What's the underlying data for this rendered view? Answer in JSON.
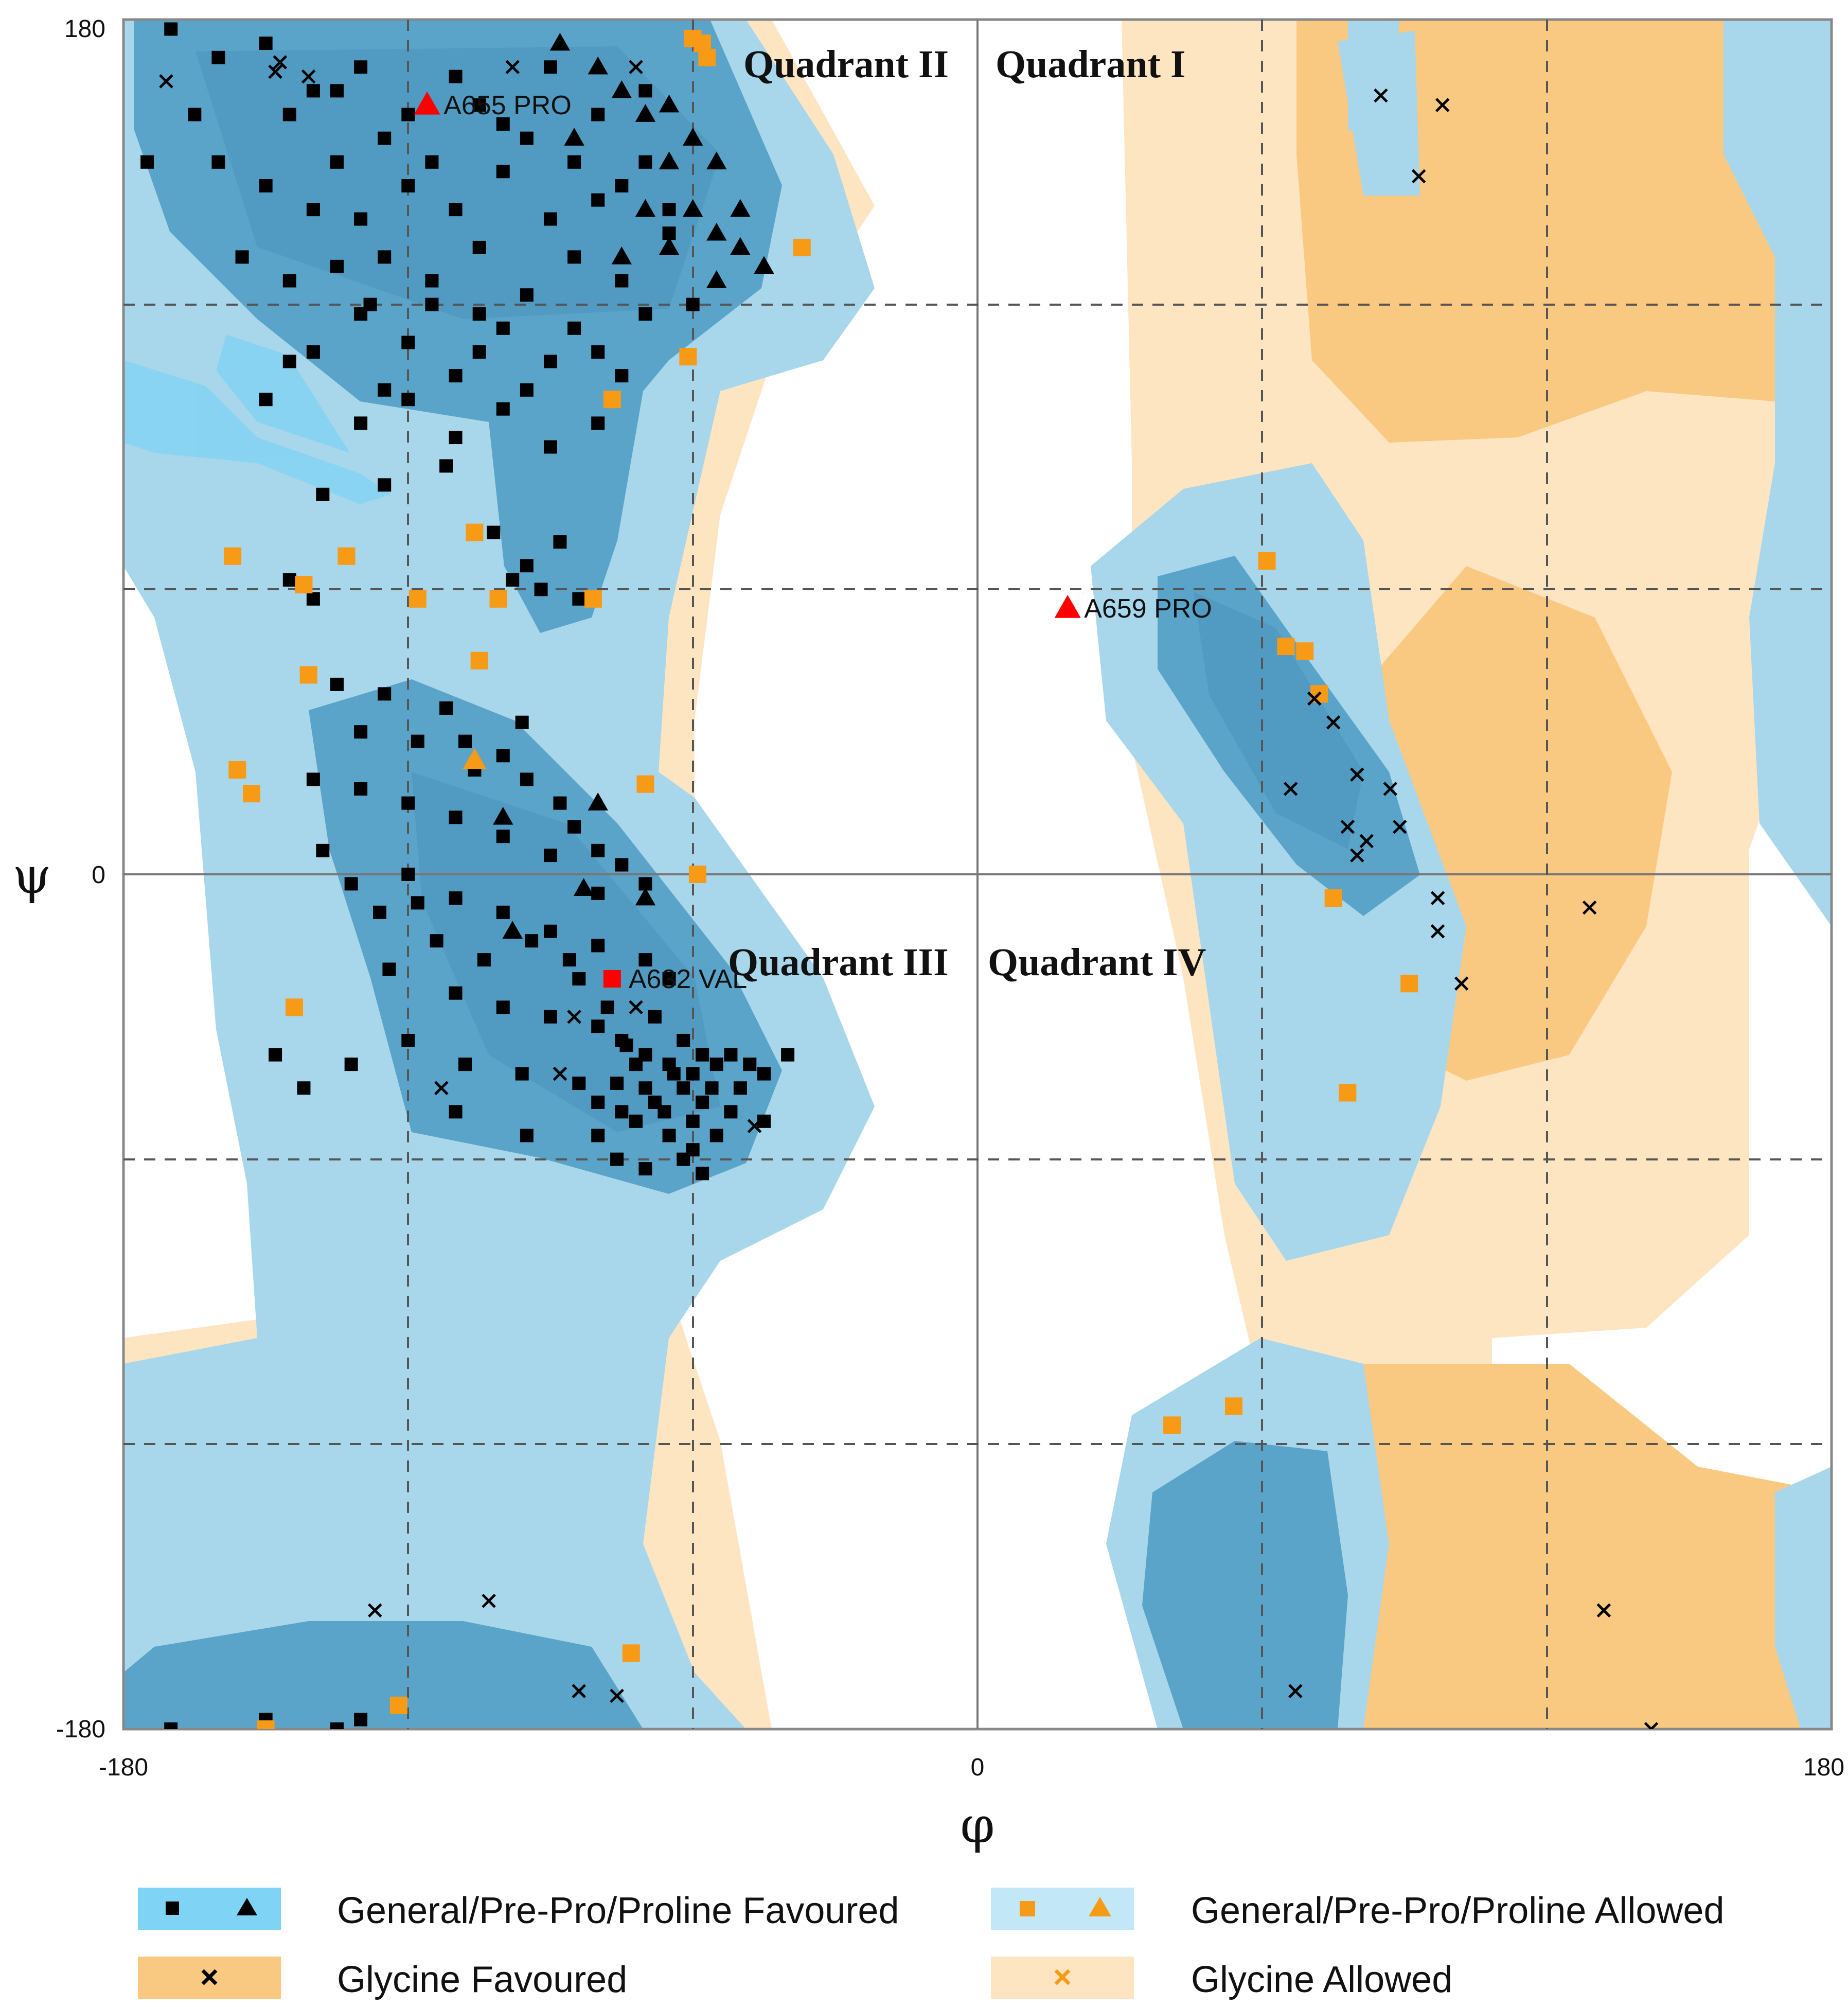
{
  "chart_data": {
    "type": "scatter",
    "title": "",
    "xlabel": "φ",
    "ylabel": "ψ",
    "xlim": [
      -180,
      180
    ],
    "ylim": [
      -180,
      180
    ],
    "x_ticks": [
      "-180",
      "0",
      "180"
    ],
    "y_ticks": [
      "180",
      "0",
      "-180"
    ],
    "grid": "dashed at ±60 and ±120",
    "quadrants": [
      "Quadrant II",
      "Quadrant I",
      "Quadrant III",
      "Quadrant IV"
    ],
    "colors": {
      "favoured_general": "#5aa3c9",
      "allowed_general": "#a8d6ea",
      "outer_general": "#7fd3f5",
      "favoured_glycine": "#f9c982",
      "allowed_glycine": "#fde5c2",
      "black_marker": "#000000",
      "orange_marker": "#f79a16",
      "outlier": "#ff0000"
    },
    "labeled_residues": [
      {
        "label": "A655  PRO",
        "phi": -116,
        "psi": 162,
        "marker": "triangle"
      },
      {
        "label": "A659  PRO",
        "phi": 19,
        "psi": 56,
        "marker": "triangle"
      },
      {
        "label": "A632  VAL",
        "phi": -77,
        "psi": -22,
        "marker": "square"
      }
    ],
    "series": [
      {
        "name": "General/Pre-Pro/Proline Favoured",
        "marker": "square",
        "points": [
          [
            -170,
            178
          ],
          [
            -160,
            172
          ],
          [
            -150,
            175
          ],
          [
            -140,
            165
          ],
          [
            -130,
            170
          ],
          [
            -120,
            160
          ],
          [
            -110,
            168
          ],
          [
            -100,
            158
          ],
          [
            -90,
            170
          ],
          [
            -80,
            160
          ],
          [
            -70,
            165
          ],
          [
            -160,
            150
          ],
          [
            -150,
            145
          ],
          [
            -140,
            140
          ],
          [
            -130,
            138
          ],
          [
            -120,
            145
          ],
          [
            -110,
            140
          ],
          [
            -100,
            148
          ],
          [
            -90,
            138
          ],
          [
            -80,
            142
          ],
          [
            -70,
            150
          ],
          [
            -155,
            130
          ],
          [
            -145,
            125
          ],
          [
            -135,
            128
          ],
          [
            -125,
            130
          ],
          [
            -115,
            125
          ],
          [
            -105,
            132
          ],
          [
            -95,
            122
          ],
          [
            -85,
            130
          ],
          [
            -75,
            125
          ],
          [
            -65,
            135
          ],
          [
            -140,
            110
          ],
          [
            -130,
            118
          ],
          [
            -120,
            112
          ],
          [
            -110,
            105
          ],
          [
            -100,
            115
          ],
          [
            -90,
            108
          ],
          [
            -80,
            110
          ],
          [
            -70,
            118
          ],
          [
            -60,
            120
          ],
          [
            -130,
            95
          ],
          [
            -120,
            100
          ],
          [
            -110,
            92
          ],
          [
            -100,
            98
          ],
          [
            -90,
            90
          ],
          [
            -80,
            95
          ],
          [
            -145,
            108
          ],
          [
            -125,
            102
          ],
          [
            -105,
            110
          ],
          [
            -95,
            102
          ],
          [
            -115,
            120
          ],
          [
            -105,
            118
          ],
          [
            -85,
            115
          ],
          [
            -75,
            105
          ],
          [
            -135,
            150
          ],
          [
            -125,
            155
          ],
          [
            -115,
            150
          ],
          [
            -105,
            162
          ],
          [
            -95,
            155
          ],
          [
            -85,
            150
          ],
          [
            -75,
            145
          ],
          [
            -65,
            140
          ],
          [
            -145,
            160
          ],
          [
            -135,
            165
          ],
          [
            -165,
            160
          ],
          [
            -175,
            150
          ],
          [
            -150,
            100
          ],
          [
            -138,
            80
          ],
          [
            -128,
            120
          ],
          [
            -125,
            82
          ],
          [
            -112,
            86
          ],
          [
            -102,
            72
          ],
          [
            -95,
            65
          ],
          [
            -88,
            70
          ],
          [
            -92,
            60
          ],
          [
            -84,
            58
          ],
          [
            -98,
            62
          ],
          [
            -145,
            62
          ],
          [
            -140,
            58
          ],
          [
            -135,
            40
          ],
          [
            -125,
            38
          ],
          [
            -112,
            35
          ],
          [
            -108,
            28
          ],
          [
            -100,
            25
          ],
          [
            -95,
            20
          ],
          [
            -88,
            15
          ],
          [
            -85,
            10
          ],
          [
            -80,
            5
          ],
          [
            -75,
            2
          ],
          [
            -70,
            -2
          ],
          [
            -140,
            20
          ],
          [
            -130,
            18
          ],
          [
            -120,
            15
          ],
          [
            -110,
            12
          ],
          [
            -100,
            8
          ],
          [
            -90,
            4
          ],
          [
            -80,
            -4
          ],
          [
            -120,
            0
          ],
          [
            -110,
            -5
          ],
          [
            -100,
            -8
          ],
          [
            -90,
            -12
          ],
          [
            -80,
            -15
          ],
          [
            -70,
            -18
          ],
          [
            -65,
            -22
          ],
          [
            -110,
            -25
          ],
          [
            -100,
            -28
          ],
          [
            -90,
            -30
          ],
          [
            -80,
            -32
          ],
          [
            -75,
            -35
          ],
          [
            -70,
            -38
          ],
          [
            -65,
            -40
          ],
          [
            -60,
            -42
          ],
          [
            -68,
            -30
          ],
          [
            -72,
            -40
          ],
          [
            -62,
            -45
          ],
          [
            -58,
            -48
          ],
          [
            -55,
            -40
          ],
          [
            -52,
            -38
          ],
          [
            -62,
            -35
          ],
          [
            -70,
            -45
          ],
          [
            -66,
            -50
          ],
          [
            -60,
            -52
          ],
          [
            -56,
            -45
          ],
          [
            -72,
            -52
          ],
          [
            -64,
            -42
          ],
          [
            -58,
            -38
          ],
          [
            -68,
            -48
          ],
          [
            -76,
            -44
          ],
          [
            -80,
            -48
          ],
          [
            -65,
            -55
          ],
          [
            -60,
            -58
          ],
          [
            -55,
            -55
          ],
          [
            -50,
            -45
          ],
          [
            -48,
            -40
          ],
          [
            -74,
            -36
          ],
          [
            -78,
            -28
          ],
          [
            -84,
            -22
          ],
          [
            -86,
            -18
          ],
          [
            -94,
            -14
          ],
          [
            -104,
            -18
          ],
          [
            -114,
            -14
          ],
          [
            -118,
            -6
          ],
          [
            -126,
            -8
          ],
          [
            -132,
            -2
          ],
          [
            -138,
            5
          ],
          [
            -130,
            30
          ],
          [
            -118,
            28
          ],
          [
            -106,
            22
          ],
          [
            -96,
            32
          ],
          [
            -124,
            -20
          ],
          [
            -108,
            -40
          ],
          [
            -96,
            -42
          ],
          [
            -84,
            -44
          ],
          [
            -80,
            -55
          ],
          [
            -76,
            -60
          ],
          [
            -70,
            -62
          ],
          [
            -62,
            -60
          ],
          [
            -58,
            -63
          ],
          [
            -75,
            -50
          ],
          [
            -110,
            -50
          ],
          [
            -95,
            -55
          ],
          [
            -120,
            -35
          ],
          [
            -132,
            -40
          ],
          [
            -148,
            -38
          ],
          [
            -142,
            -45
          ],
          [
            -170,
            -180
          ],
          [
            -135,
            -180
          ],
          [
            -130,
            -178
          ],
          [
            -150,
            -178
          ],
          [
            -40,
            -38
          ],
          [
            -45,
            -42
          ],
          [
            -52,
            -50
          ],
          [
            -45,
            -52
          ]
        ]
      },
      {
        "name": "General/Pre-Pro/Proline Allowed",
        "marker": "square",
        "points": [
          [
            -57,
            172
          ],
          [
            -58,
            175
          ],
          [
            -60,
            176
          ],
          [
            -37,
            132
          ],
          [
            -61,
            109
          ],
          [
            -77,
            100
          ],
          [
            -106,
            72
          ],
          [
            -157,
            67
          ],
          [
            -142,
            61
          ],
          [
            -133,
            67
          ],
          [
            -101,
            58
          ],
          [
            -118,
            58
          ],
          [
            -81,
            58
          ],
          [
            -105,
            45
          ],
          [
            -141,
            42
          ],
          [
            -156,
            22
          ],
          [
            -153,
            17
          ],
          [
            -70,
            19
          ],
          [
            -59,
            0
          ],
          [
            -144,
            -28
          ],
          [
            -150,
            -180
          ],
          [
            -122,
            -175
          ],
          [
            -73,
            -164
          ],
          [
            41,
            -116
          ],
          [
            54,
            -112
          ],
          [
            61,
            66
          ],
          [
            69,
            47
          ],
          [
            65,
            48
          ],
          [
            72,
            38
          ],
          [
            75,
            -5
          ],
          [
            91,
            -23
          ],
          [
            78,
            -46
          ]
        ]
      },
      {
        "name": "General/Pre-Pro/Proline Favoured (Proline)",
        "marker": "triangle",
        "points": [
          [
            -88,
            175
          ],
          [
            -80,
            170
          ],
          [
            -75,
            165
          ],
          [
            -70,
            160
          ],
          [
            -65,
            162
          ],
          [
            -60,
            155
          ],
          [
            -55,
            150
          ],
          [
            -50,
            140
          ],
          [
            -70,
            140
          ],
          [
            -65,
            132
          ],
          [
            -55,
            125
          ],
          [
            -50,
            132
          ],
          [
            -45,
            128
          ],
          [
            -75,
            130
          ],
          [
            -85,
            155
          ],
          [
            -65,
            150
          ],
          [
            -60,
            140
          ],
          [
            -55,
            135
          ],
          [
            -80,
            15
          ],
          [
            -98,
            -12
          ],
          [
            -100,
            12
          ],
          [
            -83,
            -3
          ],
          [
            -70,
            -5
          ]
        ]
      },
      {
        "name": "General/Pre-Pro/Proline Allowed (Proline)",
        "marker": "triangle",
        "points": [
          [
            -106,
            24
          ]
        ]
      },
      {
        "name": "Glycine Favoured",
        "marker": "cross",
        "points": [
          [
            -171,
            167
          ],
          [
            -141,
            168
          ],
          [
            -148,
            169
          ],
          [
            -147,
            171
          ],
          [
            -98,
            170
          ],
          [
            -72,
            170
          ],
          [
            85,
            164
          ],
          [
            98,
            162
          ],
          [
            93,
            147
          ],
          [
            71,
            37
          ],
          [
            75,
            32
          ],
          [
            66,
            18
          ],
          [
            80,
            21
          ],
          [
            87,
            18
          ],
          [
            78,
            10
          ],
          [
            89,
            10
          ],
          [
            82,
            7
          ],
          [
            80,
            4
          ],
          [
            97,
            -5
          ],
          [
            97,
            -12
          ],
          [
            129,
            -7
          ],
          [
            102,
            -23
          ],
          [
            -113,
            -45
          ],
          [
            -88,
            -42
          ],
          [
            -85,
            -30
          ],
          [
            -72,
            -28
          ],
          [
            -47,
            -53
          ],
          [
            -127,
            -155
          ],
          [
            -103,
            -153
          ],
          [
            -84,
            -172
          ],
          [
            -76,
            -173
          ],
          [
            67,
            -172
          ],
          [
            132,
            -155
          ],
          [
            142,
            -180
          ]
        ]
      },
      {
        "name": "Glycine Allowed",
        "marker": "cross",
        "points": []
      }
    ],
    "legend": [
      {
        "symbols": "square+triangle",
        "fill": "#7fd3f5",
        "marker_color": "#000000",
        "label": "General/Pre-Pro/Proline Favoured"
      },
      {
        "symbols": "square+triangle",
        "fill": "#c2e8f8",
        "marker_color": "#f79a16",
        "label": "General/Pre-Pro/Proline Allowed"
      },
      {
        "symbols": "cross",
        "fill": "#f9c982",
        "marker_color": "#000000",
        "label": "Glycine Favoured"
      },
      {
        "symbols": "cross",
        "fill": "#fde5c2",
        "marker_color": "#f79a16",
        "label": "Glycine Allowed"
      }
    ]
  }
}
